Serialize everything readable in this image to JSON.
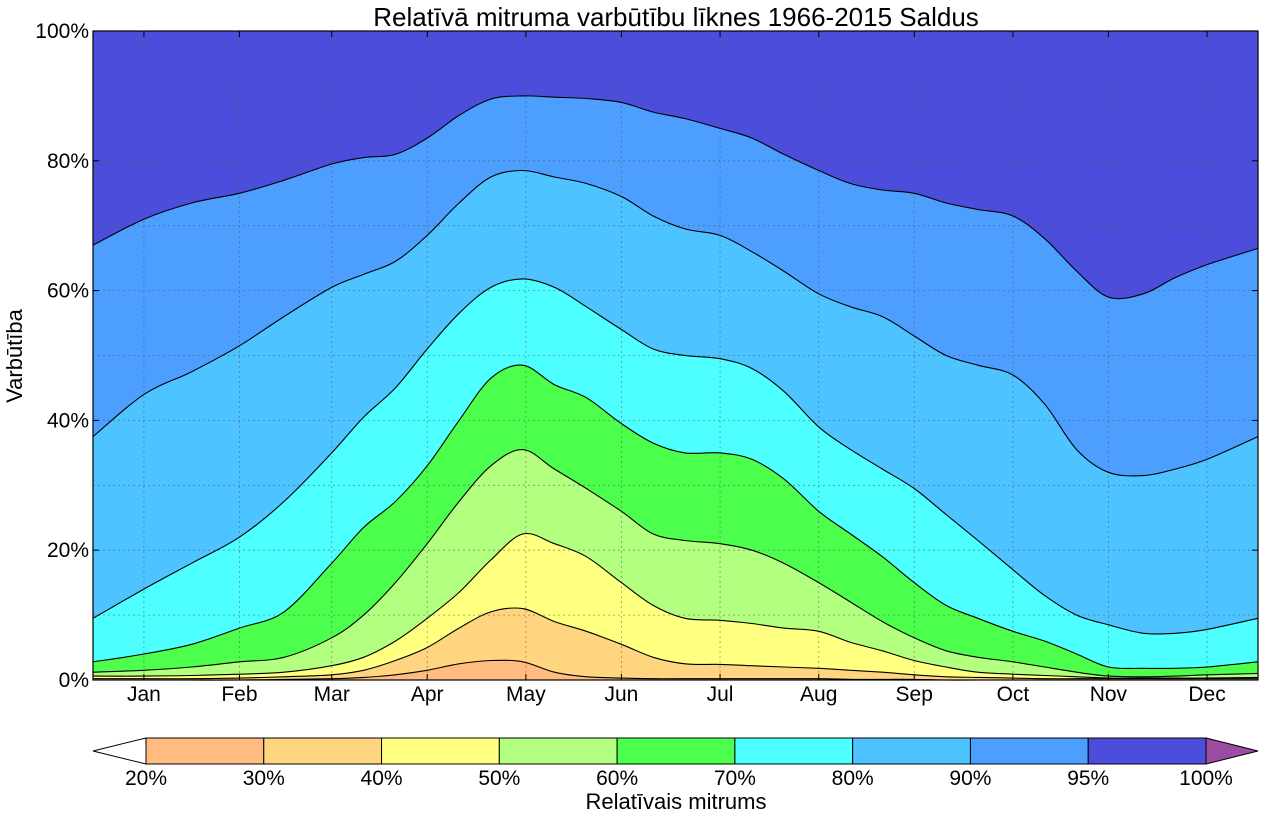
{
  "chart_data": {
    "type": "area",
    "title": "Relatīvā mitruma varbūtību līknes 1966-2015 Saldus",
    "ylabel": "Varbūtība",
    "ylim": [
      0,
      100
    ],
    "y_ticks": [
      "0%",
      "20%",
      "40%",
      "60%",
      "80%",
      "100%"
    ],
    "x_ticks": [
      "Jan",
      "Feb",
      "Mar",
      "Apr",
      "May",
      "Jun",
      "Jul",
      "Aug",
      "Sep",
      "Oct",
      "Nov",
      "Dec"
    ],
    "x_units": "day of year",
    "xlim": [
      0,
      366
    ],
    "x_tick_positions": [
      16,
      46,
      75,
      105,
      136,
      166,
      197,
      228,
      258,
      289,
      319,
      350
    ],
    "grid": true,
    "x": [
      0,
      16,
      31,
      46,
      60,
      75,
      85,
      95,
      105,
      115,
      125,
      135,
      145,
      155,
      166,
      176,
      186,
      197,
      207,
      217,
      228,
      238,
      248,
      258,
      268,
      278,
      289,
      299,
      309,
      319,
      330,
      340,
      350,
      366
    ],
    "series": [
      {
        "name": "20%",
        "values": [
          0,
          0,
          0,
          0,
          0.1,
          0.2,
          0.4,
          0.8,
          1.5,
          2.5,
          3.0,
          2.8,
          1.2,
          0.5,
          0.3,
          0.2,
          0.2,
          0.2,
          0.2,
          0.2,
          0.2,
          0.1,
          0.1,
          0.1,
          0,
          0,
          0,
          0,
          0,
          0,
          0,
          0,
          0,
          0
        ]
      },
      {
        "name": "30%",
        "values": [
          0.2,
          0.2,
          0.2,
          0.3,
          0.5,
          0.8,
          1.5,
          3.0,
          5.0,
          8.0,
          10.5,
          11.0,
          9.0,
          7.5,
          5.5,
          3.5,
          2.5,
          2.4,
          2.2,
          2.0,
          1.8,
          1.5,
          1.2,
          0.8,
          0.5,
          0.4,
          0.3,
          0.2,
          0.2,
          0.2,
          0.2,
          0.2,
          0.2,
          0.2
        ]
      },
      {
        "name": "40%",
        "values": [
          0.6,
          0.6,
          0.7,
          0.9,
          1.2,
          2.2,
          3.5,
          6.0,
          9.5,
          13.5,
          18.5,
          22.5,
          21.0,
          19.0,
          15.0,
          11.5,
          9.5,
          9.2,
          8.7,
          8.0,
          7.5,
          5.8,
          4.5,
          3.0,
          2.0,
          1.2,
          0.9,
          0.7,
          0.5,
          0.3,
          0.3,
          0.3,
          0.3,
          0.4
        ]
      },
      {
        "name": "50%",
        "values": [
          1.2,
          1.5,
          2.0,
          2.8,
          3.5,
          6.5,
          10.0,
          15.0,
          21.0,
          27.5,
          33.0,
          35.5,
          32.5,
          29.5,
          26.0,
          22.5,
          21.5,
          21.0,
          20.0,
          18.0,
          15.0,
          12.0,
          9.0,
          6.5,
          4.5,
          3.5,
          2.8,
          2.0,
          1.2,
          0.6,
          0.5,
          0.6,
          0.8,
          1.0
        ]
      },
      {
        "name": "60%",
        "values": [
          2.8,
          4.0,
          5.5,
          8.0,
          10.5,
          18.0,
          23.5,
          27.5,
          33.0,
          40.0,
          46.5,
          48.5,
          45.5,
          43.5,
          39.5,
          36.5,
          35.0,
          35.0,
          34.0,
          31.0,
          26.0,
          22.5,
          19.0,
          15.0,
          11.5,
          9.5,
          7.5,
          6.0,
          4.0,
          2.0,
          1.8,
          1.8,
          2.0,
          2.8
        ]
      },
      {
        "name": "70%",
        "values": [
          9.5,
          14.0,
          18.0,
          22.0,
          27.5,
          35.0,
          40.5,
          45.0,
          51.0,
          56.5,
          60.5,
          61.8,
          60.5,
          57.5,
          54.0,
          51.0,
          50.0,
          49.5,
          48.0,
          44.5,
          39.0,
          35.5,
          32.5,
          29.5,
          25.5,
          21.5,
          17.0,
          13.0,
          10.0,
          8.5,
          7.2,
          7.2,
          7.8,
          9.5
        ]
      },
      {
        "name": "80%",
        "values": [
          37.5,
          44.0,
          47.5,
          51.5,
          56.0,
          60.5,
          62.5,
          64.5,
          68.5,
          73.5,
          77.5,
          78.5,
          77.5,
          76.5,
          74.5,
          71.5,
          69.5,
          68.5,
          66.0,
          63.0,
          59.5,
          57.5,
          56.0,
          53.0,
          50.0,
          48.5,
          47.0,
          42.5,
          35.5,
          32.0,
          31.5,
          32.5,
          34.0,
          37.5
        ]
      },
      {
        "name": "90%",
        "values": [
          67.0,
          71.0,
          73.5,
          75.0,
          77.0,
          79.5,
          80.5,
          81.0,
          83.5,
          87.0,
          89.5,
          90.0,
          89.8,
          89.6,
          89.0,
          87.5,
          86.5,
          85.0,
          83.5,
          81.0,
          78.5,
          76.5,
          75.5,
          75.0,
          73.5,
          72.5,
          71.5,
          68.0,
          63.0,
          59.0,
          59.5,
          62.0,
          64.0,
          66.5
        ]
      }
    ],
    "band_colors": [
      "#ffbb80",
      "#ffd580",
      "#ffff80",
      "#b3ff80",
      "#4dff4d",
      "#4dffff",
      "#4dc3ff",
      "#4d9fff",
      "#4d4ddb"
    ],
    "colorbar": {
      "label": "Relatīvais mitrums",
      "tick_labels": [
        "20%",
        "30%",
        "40%",
        "50%",
        "60%",
        "70%",
        "80%",
        "90%",
        "95%",
        "100%"
      ],
      "under_color": "#ffffff",
      "over_color": "#9b4da3"
    }
  }
}
